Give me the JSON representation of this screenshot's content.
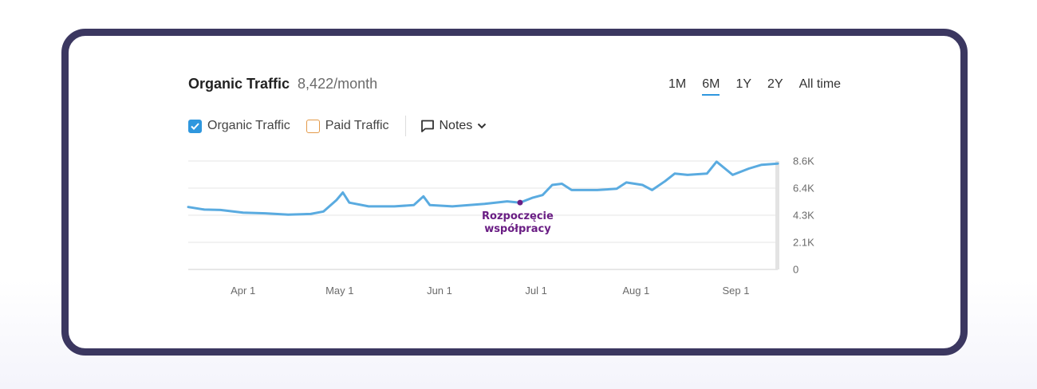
{
  "header": {
    "title": "Organic Traffic",
    "value": "8,422/month"
  },
  "periods": [
    "1M",
    "6M",
    "1Y",
    "2Y",
    "All time"
  ],
  "active_period": "6M",
  "legend": {
    "organic": {
      "label": "Organic Traffic",
      "checked": true
    },
    "paid": {
      "label": "Paid Traffic",
      "checked": false
    },
    "notes_label": "Notes"
  },
  "colors": {
    "line": "#5aabe0",
    "checkbox": "#2f97de",
    "paid_box": "#e39a4a",
    "annotation": "#6a1e84"
  },
  "chart_data": {
    "type": "line",
    "x_tick_labels": [
      "Apr 1",
      "May 1",
      "Jun 1",
      "Jul 1",
      "Aug 1",
      "Sep 1"
    ],
    "y_tick_labels": [
      "8.6K",
      "6.4K",
      "4.3K",
      "2.1K",
      "0"
    ],
    "ylim": [
      0,
      8600
    ],
    "grid": true,
    "series": [
      {
        "name": "Organic Traffic",
        "points": [
          [
            "Mar 15",
            4950
          ],
          [
            "Mar 20",
            4750
          ],
          [
            "Mar 25",
            4720
          ],
          [
            "Apr 1",
            4500
          ],
          [
            "Apr 8",
            4450
          ],
          [
            "Apr 15",
            4350
          ],
          [
            "Apr 22",
            4400
          ],
          [
            "Apr 26",
            4600
          ],
          [
            "Apr 30",
            5500
          ],
          [
            "May 2",
            6100
          ],
          [
            "May 4",
            5300
          ],
          [
            "May 10",
            5000
          ],
          [
            "May 18",
            5000
          ],
          [
            "May 24",
            5100
          ],
          [
            "May 27",
            5800
          ],
          [
            "May 29",
            5100
          ],
          [
            "Jun 5",
            5000
          ],
          [
            "Jun 15",
            5200
          ],
          [
            "Jun 22",
            5400
          ],
          [
            "Jun 26",
            5300
          ],
          [
            "Jun 30",
            5700
          ],
          [
            "Jul 3",
            5900
          ],
          [
            "Jul 6",
            6700
          ],
          [
            "Jul 9",
            6800
          ],
          [
            "Jul 12",
            6300
          ],
          [
            "Jul 20",
            6300
          ],
          [
            "Jul 26",
            6400
          ],
          [
            "Jul 29",
            6900
          ],
          [
            "Aug 3",
            6700
          ],
          [
            "Aug 6",
            6300
          ],
          [
            "Aug 10",
            7000
          ],
          [
            "Aug 13",
            7600
          ],
          [
            "Aug 17",
            7500
          ],
          [
            "Aug 23",
            7600
          ],
          [
            "Aug 26",
            8550
          ],
          [
            "Aug 31",
            7500
          ],
          [
            "Sep 5",
            8000
          ],
          [
            "Sep 9",
            8300
          ],
          [
            "Sep 14",
            8400
          ]
        ]
      }
    ],
    "annotations": [
      {
        "date": "Jun 26",
        "value": 5300,
        "text_line1": "Rozpoczęcie",
        "text_line2": "współpracy"
      }
    ]
  }
}
